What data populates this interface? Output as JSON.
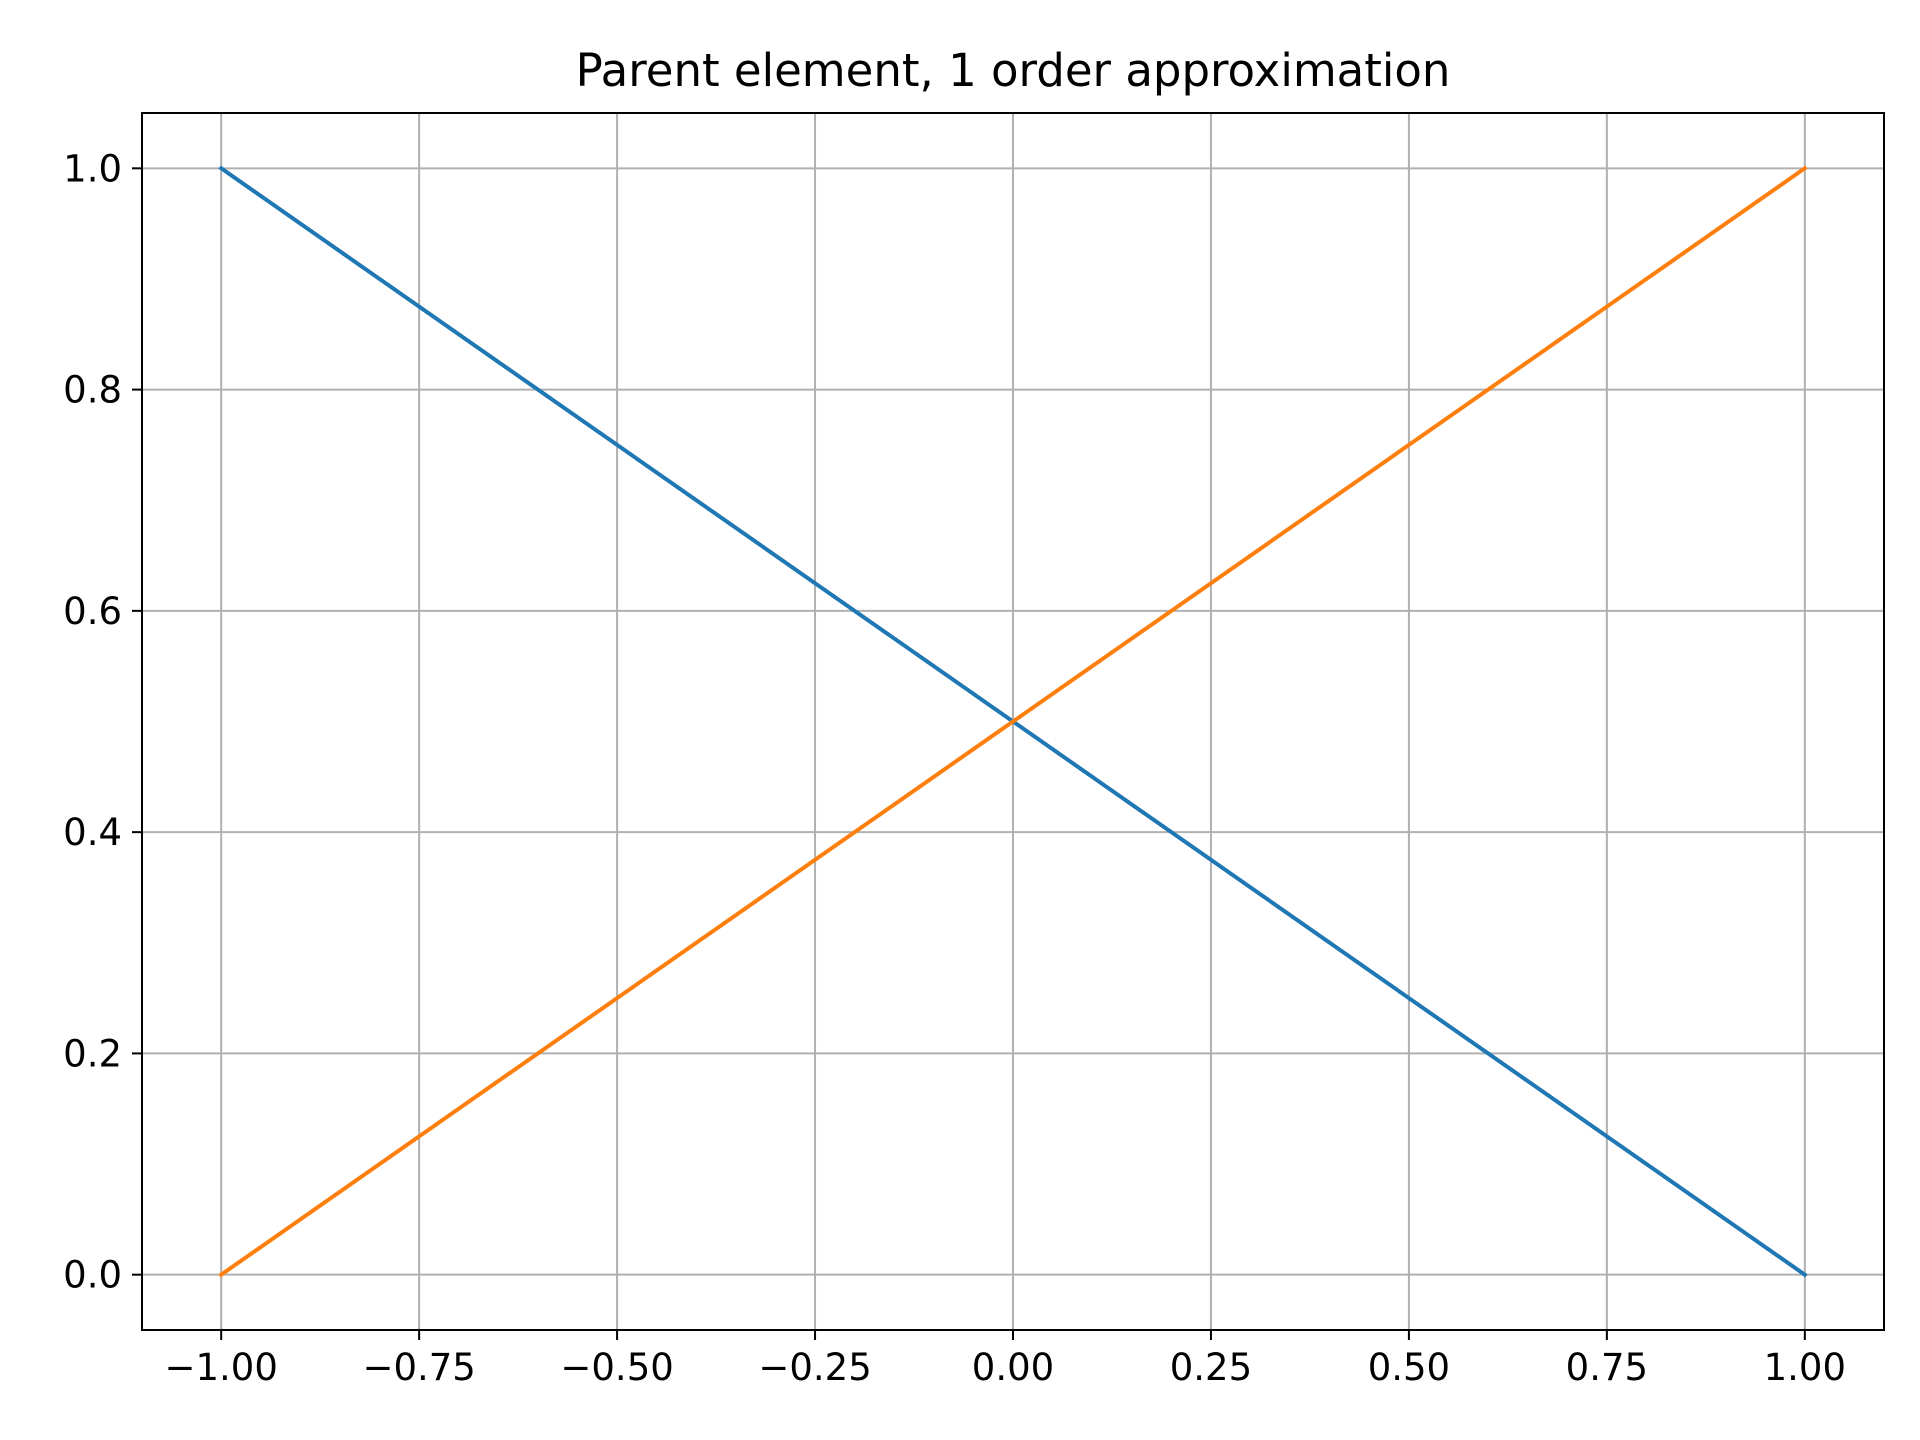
{
  "chart_data": {
    "type": "line",
    "title": "Parent element, 1 order approximation",
    "xlabel": "",
    "ylabel": "",
    "xlim": [
      -1.1,
      1.1
    ],
    "ylim": [
      -0.05,
      1.05
    ],
    "grid": true,
    "legend": "none",
    "x_ticks": [
      -1.0,
      -0.75,
      -0.5,
      -0.25,
      0.0,
      0.25,
      0.5,
      0.75,
      1.0
    ],
    "x_tick_labels": [
      "−1.00",
      "−0.75",
      "−0.50",
      "−0.25",
      "0.00",
      "0.25",
      "0.50",
      "0.75",
      "1.00"
    ],
    "y_ticks": [
      0.0,
      0.2,
      0.4,
      0.6,
      0.8,
      1.0
    ],
    "y_tick_labels": [
      "0.0",
      "0.2",
      "0.4",
      "0.6",
      "0.8",
      "1.0"
    ],
    "series": [
      {
        "color": "#1f77b4",
        "x": [
          -1.0,
          1.0
        ],
        "y": [
          1.0,
          0.0
        ]
      },
      {
        "color": "#ff7f0e",
        "x": [
          -1.0,
          1.0
        ],
        "y": [
          0.0,
          1.0
        ]
      }
    ]
  }
}
